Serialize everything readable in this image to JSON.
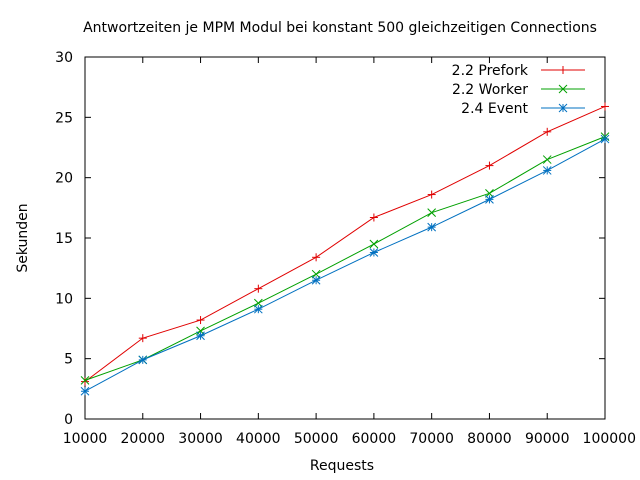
{
  "chart_data": {
    "type": "line",
    "title": "Antwortzeiten je MPM Modul bei konstant 500 gleichzeitigen Connections",
    "xlabel": "Requests",
    "ylabel": "Sekunden",
    "xlim": [
      10000,
      100000
    ],
    "ylim": [
      0,
      30
    ],
    "xticks": [
      10000,
      20000,
      30000,
      40000,
      50000,
      60000,
      70000,
      80000,
      90000,
      100000
    ],
    "yticks": [
      0,
      5,
      10,
      15,
      20,
      25,
      30
    ],
    "grid": false,
    "legend_position": "top-right",
    "x": [
      10000,
      20000,
      30000,
      40000,
      50000,
      60000,
      70000,
      80000,
      90000,
      100000
    ],
    "series": [
      {
        "name": "2.2 Prefork",
        "color": "#e00000",
        "marker": "plus",
        "values": [
          3.1,
          6.7,
          8.2,
          10.8,
          13.4,
          16.7,
          18.6,
          21.0,
          23.8,
          25.9
        ]
      },
      {
        "name": "2.2 Worker",
        "color": "#00a000",
        "marker": "cross",
        "values": [
          3.2,
          4.9,
          7.3,
          9.6,
          12.0,
          14.5,
          17.1,
          18.7,
          21.5,
          23.4
        ]
      },
      {
        "name": "2.4 Event",
        "color": "#0070c0",
        "marker": "star",
        "values": [
          2.3,
          4.9,
          6.9,
          9.1,
          11.5,
          13.8,
          15.9,
          18.2,
          20.6,
          23.2
        ]
      }
    ]
  }
}
